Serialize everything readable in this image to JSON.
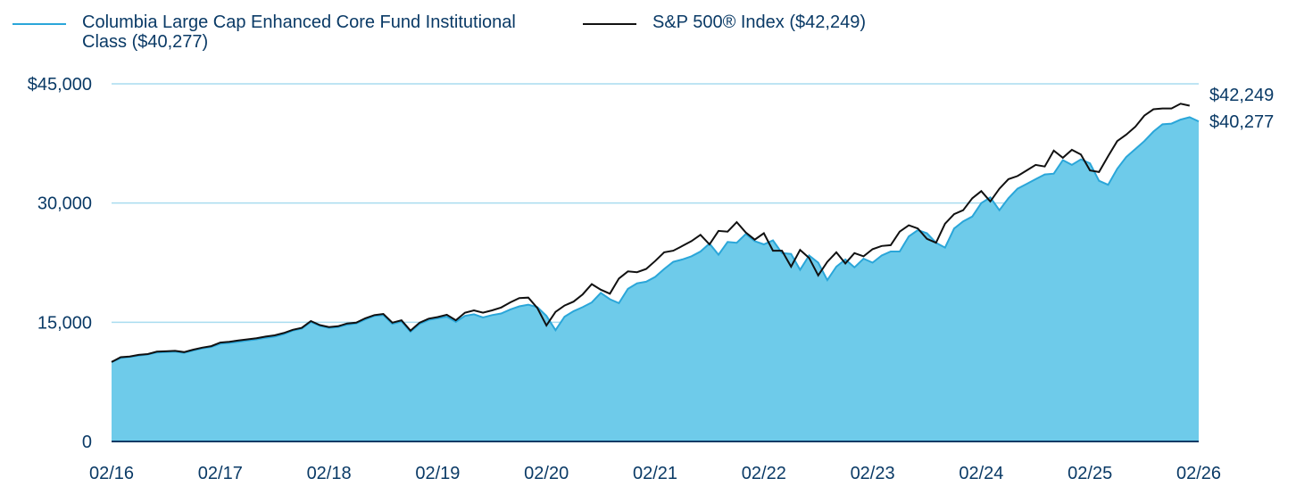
{
  "chart_data": {
    "type": "area",
    "title": "",
    "xlabel": "",
    "ylabel": "",
    "ylim": [
      0,
      45000
    ],
    "yticks": [
      {
        "value": 0,
        "label": "0"
      },
      {
        "value": 15000,
        "label": "15,000"
      },
      {
        "value": 30000,
        "label": "30,000"
      },
      {
        "value": 45000,
        "label": "$45,000"
      }
    ],
    "xticks": [
      "02/16",
      "02/17",
      "02/18",
      "02/19",
      "02/20",
      "02/21",
      "02/22",
      "02/23",
      "02/24",
      "02/25",
      "02/26"
    ],
    "grid": true,
    "legend_position": "top",
    "series": [
      {
        "name": "Columbia Large Cap Enhanced Core Fund Institutional Class ($40,277)",
        "kind": "area",
        "color": "#2aa6d9",
        "fill": "#6ecbea",
        "end_label": "$40,277",
        "values": [
          10000,
          10500,
          10650,
          10800,
          10950,
          11200,
          11250,
          11300,
          11150,
          11450,
          11700,
          11900,
          12300,
          12400,
          12550,
          12700,
          12850,
          13050,
          13200,
          13500,
          13950,
          14200,
          15050,
          14550,
          14300,
          14400,
          14700,
          14850,
          15350,
          15800,
          15900,
          14800,
          15100,
          13800,
          14800,
          15300,
          15500,
          15700,
          15050,
          15800,
          16000,
          15600,
          15900,
          16100,
          16600,
          17000,
          17200,
          16900,
          15800,
          14000,
          15700,
          16400,
          16900,
          17500,
          18700,
          17900,
          17400,
          19200,
          19900,
          20100,
          20700,
          21700,
          22600,
          22900,
          23300,
          23900,
          24900,
          23500,
          25100,
          25000,
          26100,
          25200,
          24800,
          25300,
          23700,
          23600,
          21600,
          23400,
          22500,
          20300,
          22000,
          22900,
          21900,
          23000,
          22500,
          23400,
          23900,
          23900,
          25800,
          26600,
          26200,
          25000,
          24400,
          26800,
          27700,
          28300,
          30000,
          30700,
          29100,
          30600,
          31800,
          32400,
          33000,
          33600,
          33700,
          35400,
          34800,
          35500,
          35000,
          32800,
          32300,
          34300,
          35800,
          36800,
          37800,
          39000,
          39900,
          40000,
          40500,
          40800,
          40277
        ]
      },
      {
        "name": "S&P 500® Index ($42,249)",
        "kind": "line",
        "color": "#111111",
        "end_label": "$42,249",
        "values": [
          10000,
          10600,
          10700,
          10900,
          11000,
          11300,
          11350,
          11400,
          11250,
          11550,
          11800,
          12000,
          12450,
          12550,
          12700,
          12850,
          13000,
          13200,
          13350,
          13650,
          14050,
          14300,
          15150,
          14650,
          14400,
          14500,
          14850,
          14950,
          15500,
          15900,
          16050,
          14950,
          15250,
          13950,
          14950,
          15450,
          15650,
          15950,
          15250,
          16200,
          16500,
          16200,
          16500,
          16850,
          17500,
          18050,
          18100,
          16800,
          14600,
          16300,
          17100,
          17600,
          18500,
          19800,
          19100,
          18600,
          20500,
          21400,
          21300,
          21700,
          22700,
          23800,
          24000,
          24600,
          25200,
          26000,
          24800,
          26500,
          26400,
          27600,
          26300,
          25400,
          26200,
          24000,
          24000,
          22000,
          24100,
          23100,
          20900,
          22600,
          23800,
          22400,
          23700,
          23300,
          24200,
          24600,
          24700,
          26400,
          27200,
          26800,
          25500,
          25000,
          27400,
          28600,
          29100,
          30600,
          31500,
          30200,
          31800,
          33000,
          33400,
          34100,
          34800,
          34600,
          36600,
          35700,
          36700,
          36100,
          34100,
          33900,
          35900,
          37800,
          38600,
          39600,
          41000,
          41800,
          41900,
          41900,
          42500,
          42249
        ]
      }
    ]
  }
}
